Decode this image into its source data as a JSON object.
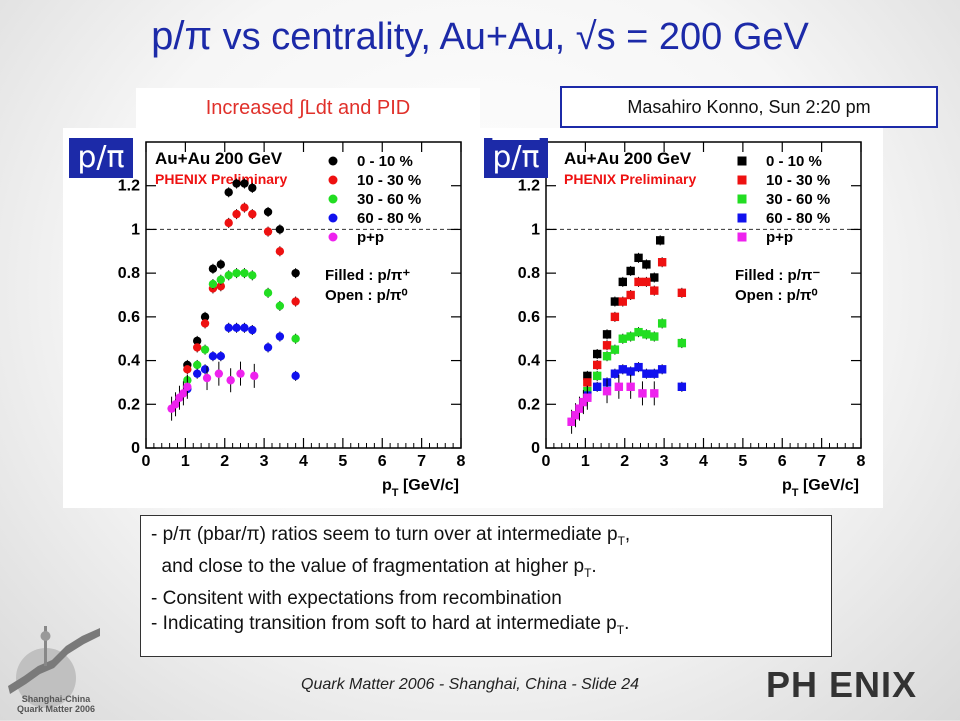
{
  "slide": {
    "title_main": "p/π",
    "title_rest": " vs centrality, Au+Au, √s = 200 GeV",
    "subtitle": "Increased ∫Ldt  and PID",
    "speaker": "Masahiro Konno, Sun 2:20 pm",
    "footer": "Quark Matter 2006 - Shanghai, China - Slide  24",
    "logo_text": "PH ENIX",
    "conference_logo_text": [
      "Shanghai-China",
      "Quark Matter 2006"
    ],
    "notes": [
      {
        "pre": "- p/π (pbar/π) ratios seem to turn over at intermediate p",
        "sub": "T",
        "post": ","
      },
      {
        "pre": "  and close to the value of fragmentation at higher p",
        "sub": "T",
        "post": "."
      },
      {
        "pre": "- Consitent with expectations from recombination",
        "sub": "",
        "post": ""
      },
      {
        "pre": "- Indicating transition from soft to hard at intermediate p",
        "sub": "T",
        "post": "."
      }
    ]
  },
  "chart_data": [
    {
      "type": "scatter",
      "badge": "p/π",
      "header": "Au+Au 200 GeV",
      "preliminary": "PHENIX Preliminary",
      "xlabel": "p_T [GeV/c]",
      "xlim": [
        0,
        8
      ],
      "ylim": [
        0,
        1.4
      ],
      "xticks": [
        "0",
        "1",
        "2",
        "3",
        "4",
        "5",
        "6",
        "7",
        "8"
      ],
      "yticks": [
        "0",
        "0.2",
        "0.4",
        "0.6",
        "0.8",
        "1",
        "1.2"
      ],
      "reference_line": 1,
      "marker": "circle",
      "notes_text": [
        "Filled : p/π⁺",
        "Open :  p/π⁰"
      ],
      "legend": [
        "0 - 10 %",
        "10 - 30 %",
        "30 - 60 %",
        "60 - 80 %",
        "p+p"
      ],
      "colors": [
        "#000000",
        "#ee1111",
        "#22dd22",
        "#1111ee",
        "#ee22ee"
      ],
      "series": [
        {
          "name": "0 - 10 %",
          "points": [
            [
              1.05,
              0.38
            ],
            [
              1.3,
              0.49
            ],
            [
              1.5,
              0.6
            ],
            [
              1.7,
              0.82
            ],
            [
              1.9,
              0.84
            ],
            [
              2.1,
              1.17
            ],
            [
              2.3,
              1.21
            ],
            [
              2.5,
              1.21
            ],
            [
              2.7,
              1.19
            ],
            [
              3.1,
              1.08
            ],
            [
              3.4,
              1.0
            ],
            [
              3.8,
              0.8
            ]
          ]
        },
        {
          "name": "10 - 30 %",
          "points": [
            [
              1.05,
              0.36
            ],
            [
              1.3,
              0.46
            ],
            [
              1.5,
              0.57
            ],
            [
              1.7,
              0.73
            ],
            [
              1.9,
              0.74
            ],
            [
              2.1,
              1.03
            ],
            [
              2.3,
              1.07
            ],
            [
              2.5,
              1.1
            ],
            [
              2.7,
              1.07
            ],
            [
              3.1,
              0.99
            ],
            [
              3.4,
              0.9
            ],
            [
              3.8,
              0.67
            ]
          ]
        },
        {
          "name": "30 - 60 %",
          "points": [
            [
              1.05,
              0.31
            ],
            [
              1.3,
              0.38
            ],
            [
              1.5,
              0.45
            ],
            [
              1.7,
              0.75
            ],
            [
              1.9,
              0.77
            ],
            [
              2.1,
              0.79
            ],
            [
              2.3,
              0.8
            ],
            [
              2.5,
              0.8
            ],
            [
              2.7,
              0.79
            ],
            [
              3.1,
              0.71
            ],
            [
              3.4,
              0.65
            ],
            [
              3.8,
              0.5
            ]
          ]
        },
        {
          "name": "60 - 80 %",
          "points": [
            [
              1.05,
              0.27
            ],
            [
              1.3,
              0.34
            ],
            [
              1.5,
              0.36
            ],
            [
              1.7,
              0.42
            ],
            [
              1.9,
              0.42
            ],
            [
              2.1,
              0.55
            ],
            [
              2.3,
              0.55
            ],
            [
              2.5,
              0.55
            ],
            [
              2.7,
              0.54
            ],
            [
              3.1,
              0.46
            ],
            [
              3.4,
              0.51
            ],
            [
              3.8,
              0.33
            ]
          ]
        },
        {
          "name": "p+p",
          "points": [
            [
              0.65,
              0.18
            ],
            [
              0.75,
              0.2
            ],
            [
              0.85,
              0.23
            ],
            [
              0.95,
              0.25
            ],
            [
              1.05,
              0.28
            ],
            [
              1.55,
              0.32
            ],
            [
              1.85,
              0.34
            ],
            [
              2.15,
              0.31
            ],
            [
              2.4,
              0.34
            ],
            [
              2.75,
              0.33
            ]
          ]
        }
      ]
    },
    {
      "type": "scatter",
      "badge": "p/π",
      "header": "Au+Au 200 GeV",
      "preliminary": "PHENIX Preliminary",
      "xlabel": "p_T [GeV/c]",
      "xlim": [
        0,
        8
      ],
      "ylim": [
        0,
        1.4
      ],
      "xticks": [
        "0",
        "1",
        "2",
        "3",
        "4",
        "5",
        "6",
        "7",
        "8"
      ],
      "yticks": [
        "0",
        "0.2",
        "0.4",
        "0.6",
        "0.8",
        "1",
        "1.2"
      ],
      "reference_line": 1,
      "marker": "square",
      "notes_text": [
        "Filled : p/π⁻",
        "Open :  p/π⁰"
      ],
      "legend": [
        "0 - 10 %",
        "10 - 30 %",
        "30 - 60 %",
        "60 - 80 %",
        "p+p"
      ],
      "colors": [
        "#000000",
        "#ee1111",
        "#22dd22",
        "#1111ee",
        "#ee22ee"
      ],
      "series": [
        {
          "name": "0 - 10 %",
          "points": [
            [
              1.05,
              0.33
            ],
            [
              1.3,
              0.43
            ],
            [
              1.55,
              0.52
            ],
            [
              1.75,
              0.67
            ],
            [
              1.95,
              0.76
            ],
            [
              2.15,
              0.81
            ],
            [
              2.35,
              0.87
            ],
            [
              2.55,
              0.84
            ],
            [
              2.75,
              0.78
            ],
            [
              2.9,
              0.95
            ]
          ]
        },
        {
          "name": "10 - 30 %",
          "points": [
            [
              1.05,
              0.3
            ],
            [
              1.3,
              0.38
            ],
            [
              1.55,
              0.47
            ],
            [
              1.75,
              0.6
            ],
            [
              1.95,
              0.67
            ],
            [
              2.15,
              0.7
            ],
            [
              2.35,
              0.76
            ],
            [
              2.55,
              0.76
            ],
            [
              2.75,
              0.72
            ],
            [
              2.95,
              0.85
            ],
            [
              3.45,
              0.71
            ]
          ]
        },
        {
          "name": "30 - 60 %",
          "points": [
            [
              1.05,
              0.26
            ],
            [
              1.3,
              0.33
            ],
            [
              1.55,
              0.42
            ],
            [
              1.75,
              0.45
            ],
            [
              1.95,
              0.5
            ],
            [
              2.15,
              0.51
            ],
            [
              2.35,
              0.53
            ],
            [
              2.55,
              0.52
            ],
            [
              2.75,
              0.51
            ],
            [
              2.95,
              0.57
            ],
            [
              3.45,
              0.48
            ]
          ]
        },
        {
          "name": "60 - 80 %",
          "points": [
            [
              1.05,
              0.24
            ],
            [
              1.3,
              0.28
            ],
            [
              1.55,
              0.3
            ],
            [
              1.75,
              0.34
            ],
            [
              1.95,
              0.36
            ],
            [
              2.15,
              0.35
            ],
            [
              2.35,
              0.37
            ],
            [
              2.55,
              0.34
            ],
            [
              2.75,
              0.34
            ],
            [
              2.95,
              0.36
            ],
            [
              3.45,
              0.28
            ]
          ]
        },
        {
          "name": "p+p",
          "points": [
            [
              0.65,
              0.12
            ],
            [
              0.75,
              0.15
            ],
            [
              0.85,
              0.18
            ],
            [
              0.95,
              0.21
            ],
            [
              1.05,
              0.23
            ],
            [
              1.55,
              0.26
            ],
            [
              1.85,
              0.28
            ],
            [
              2.15,
              0.28
            ],
            [
              2.45,
              0.25
            ],
            [
              2.75,
              0.25
            ]
          ]
        }
      ]
    }
  ]
}
